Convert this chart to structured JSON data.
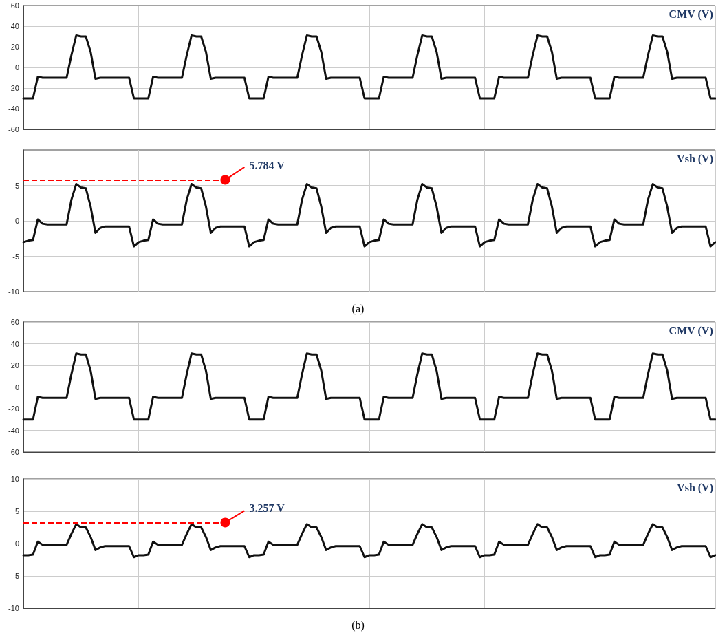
{
  "chart_data": [
    {
      "type": "line",
      "ylabel": "CMV (V)",
      "ylim": [
        -60,
        60
      ],
      "yticks": [
        -60,
        -40,
        -20,
        0,
        20,
        40,
        60
      ],
      "grid": true,
      "tick_labels": "y",
      "categories": [
        null,
        null,
        null,
        null,
        null,
        null,
        null,
        null,
        null,
        null,
        null,
        null,
        null,
        null,
        null,
        null,
        null,
        null,
        null,
        null,
        null,
        null,
        null,
        null,
        null,
        null,
        null,
        null,
        null,
        null,
        null,
        null,
        null,
        null,
        null,
        null,
        null,
        null,
        null,
        null,
        null,
        null,
        null,
        null,
        null,
        null,
        null,
        null,
        null,
        null,
        null,
        null,
        null,
        null,
        null,
        null,
        null,
        null,
        null,
        null,
        null,
        null,
        null,
        null,
        null,
        null,
        null,
        null,
        null,
        null,
        null,
        null,
        null,
        null,
        null,
        null,
        null,
        null,
        null,
        null,
        null,
        null,
        null,
        null,
        null,
        null,
        null,
        null,
        null,
        null,
        null,
        null,
        null,
        null,
        null,
        null,
        null,
        null,
        null,
        null,
        null,
        null,
        null,
        null,
        null,
        null,
        null,
        null,
        null,
        null,
        null,
        null,
        null,
        null,
        null,
        null,
        null,
        null,
        null,
        null,
        null,
        null,
        null,
        null,
        null,
        null,
        null,
        null,
        null,
        null,
        null,
        null,
        null,
        null,
        null,
        null,
        null,
        null,
        null,
        null,
        null,
        null,
        null,
        null,
        null
      ],
      "series": [
        {
          "color": "#111111",
          "values": [
            -30,
            -30,
            -30,
            -9,
            -10,
            -10,
            -10,
            -10,
            -10,
            -10,
            12,
            31,
            30,
            30,
            15,
            -11,
            -10,
            -10,
            -10,
            -10,
            -10,
            -10,
            -10,
            -30,
            -30,
            -30,
            -30,
            -9,
            -10,
            -10,
            -10,
            -10,
            -10,
            -10,
            12,
            31,
            30,
            30,
            15,
            -11,
            -10,
            -10,
            -10,
            -10,
            -10,
            -10,
            -10,
            -30,
            -30,
            -30,
            -30,
            -9,
            -10,
            -10,
            -10,
            -10,
            -10,
            -10,
            12,
            31,
            30,
            30,
            15,
            -11,
            -10,
            -10,
            -10,
            -10,
            -10,
            -10,
            -10,
            -30,
            -30,
            -30,
            -30,
            -9,
            -10,
            -10,
            -10,
            -10,
            -10,
            -10,
            12,
            31,
            30,
            30,
            15,
            -11,
            -10,
            -10,
            -10,
            -10,
            -10,
            -10,
            -10,
            -30,
            -30,
            -30,
            -30,
            -9,
            -10,
            -10,
            -10,
            -10,
            -10,
            -10,
            12,
            31,
            30,
            30,
            15,
            -11,
            -10,
            -10,
            -10,
            -10,
            -10,
            -10,
            -10,
            -30,
            -30,
            -30,
            -30,
            -9,
            -10,
            -10,
            -10,
            -10,
            -10,
            -10,
            12,
            31,
            30,
            30,
            15,
            -11,
            -10,
            -10,
            -10,
            -10,
            -10,
            -10,
            -10,
            -30,
            -30
          ]
        }
      ]
    },
    {
      "type": "line",
      "ylabel": "Vsh (V)",
      "ylim": [
        -10,
        10
      ],
      "yticks": [
        -10,
        -5,
        0,
        5
      ],
      "grid": true,
      "tick_labels": "y",
      "annotations": [
        "(a)"
      ],
      "ref_lines": [
        {
          "axis": "y",
          "value": 5.784,
          "label": "5.784 V",
          "color": "#ff0000",
          "line_style": "dashed"
        }
      ],
      "categories": [
        null,
        null,
        null,
        null,
        null,
        null,
        null,
        null,
        null,
        null,
        null,
        null,
        null,
        null,
        null,
        null,
        null,
        null,
        null,
        null,
        null,
        null,
        null,
        null,
        null,
        null,
        null,
        null,
        null,
        null,
        null,
        null,
        null,
        null,
        null,
        null,
        null,
        null,
        null,
        null,
        null,
        null,
        null,
        null,
        null,
        null,
        null,
        null,
        null,
        null,
        null,
        null,
        null,
        null,
        null,
        null,
        null,
        null,
        null,
        null,
        null,
        null,
        null,
        null,
        null,
        null,
        null,
        null,
        null,
        null,
        null,
        null,
        null,
        null,
        null,
        null,
        null,
        null,
        null,
        null,
        null,
        null,
        null,
        null,
        null,
        null,
        null,
        null,
        null,
        null,
        null,
        null,
        null,
        null,
        null,
        null,
        null,
        null,
        null,
        null,
        null,
        null,
        null,
        null,
        null,
        null,
        null,
        null,
        null,
        null,
        null,
        null,
        null,
        null,
        null,
        null,
        null,
        null,
        null,
        null,
        null,
        null,
        null,
        null,
        null,
        null,
        null,
        null,
        null,
        null,
        null,
        null,
        null,
        null,
        null,
        null,
        null,
        null,
        null,
        null,
        null,
        null,
        null,
        null,
        null
      ],
      "series": [
        {
          "color": "#111111",
          "values": [
            -3,
            -2.8,
            -2.7,
            0.2,
            -0.4,
            -0.5,
            -0.5,
            -0.5,
            -0.5,
            -0.5,
            3,
            5.2,
            4.7,
            4.6,
            2,
            -1.7,
            -1,
            -0.8,
            -0.8,
            -0.8,
            -0.8,
            -0.8,
            -0.8,
            -3.6,
            -3,
            -2.8,
            -2.7,
            0.2,
            -0.4,
            -0.5,
            -0.5,
            -0.5,
            -0.5,
            -0.5,
            3,
            5.2,
            4.7,
            4.6,
            2,
            -1.7,
            -1,
            -0.8,
            -0.8,
            -0.8,
            -0.8,
            -0.8,
            -0.8,
            -3.6,
            -3,
            -2.8,
            -2.7,
            0.2,
            -0.4,
            -0.5,
            -0.5,
            -0.5,
            -0.5,
            -0.5,
            3,
            5.2,
            4.7,
            4.6,
            2,
            -1.7,
            -1,
            -0.8,
            -0.8,
            -0.8,
            -0.8,
            -0.8,
            -0.8,
            -3.6,
            -3,
            -2.8,
            -2.7,
            0.2,
            -0.4,
            -0.5,
            -0.5,
            -0.5,
            -0.5,
            -0.5,
            3,
            5.2,
            4.7,
            4.6,
            2,
            -1.7,
            -1,
            -0.8,
            -0.8,
            -0.8,
            -0.8,
            -0.8,
            -0.8,
            -3.6,
            -3,
            -2.8,
            -2.7,
            0.2,
            -0.4,
            -0.5,
            -0.5,
            -0.5,
            -0.5,
            -0.5,
            3,
            5.2,
            4.7,
            4.6,
            2,
            -1.7,
            -1,
            -0.8,
            -0.8,
            -0.8,
            -0.8,
            -0.8,
            -0.8,
            -3.6,
            -3,
            -2.8,
            -2.7,
            0.2,
            -0.4,
            -0.5,
            -0.5,
            -0.5,
            -0.5,
            -0.5,
            3,
            5.2,
            4.7,
            4.6,
            2,
            -1.7,
            -1,
            -0.8,
            -0.8,
            -0.8,
            -0.8,
            -0.8,
            -0.8,
            -3.6,
            -3
          ]
        }
      ]
    },
    {
      "type": "line",
      "ylabel": "CMV (V)",
      "ylim": [
        -60,
        60
      ],
      "yticks": [
        -60,
        -40,
        -20,
        0,
        20,
        40,
        60
      ],
      "grid": true,
      "tick_labels": "y",
      "categories": [
        null,
        null,
        null,
        null,
        null,
        null,
        null,
        null,
        null,
        null,
        null,
        null,
        null,
        null,
        null,
        null,
        null,
        null,
        null,
        null,
        null,
        null,
        null,
        null,
        null,
        null,
        null,
        null,
        null,
        null,
        null,
        null,
        null,
        null,
        null,
        null,
        null,
        null,
        null,
        null,
        null,
        null,
        null,
        null,
        null,
        null,
        null,
        null,
        null,
        null,
        null,
        null,
        null,
        null,
        null,
        null,
        null,
        null,
        null,
        null,
        null,
        null,
        null,
        null,
        null,
        null,
        null,
        null,
        null,
        null,
        null,
        null,
        null,
        null,
        null,
        null,
        null,
        null,
        null,
        null,
        null,
        null,
        null,
        null,
        null,
        null,
        null,
        null,
        null,
        null,
        null,
        null,
        null,
        null,
        null,
        null,
        null,
        null,
        null,
        null,
        null,
        null,
        null,
        null,
        null,
        null,
        null,
        null,
        null,
        null,
        null,
        null,
        null,
        null,
        null,
        null,
        null,
        null,
        null,
        null,
        null,
        null,
        null,
        null,
        null,
        null,
        null,
        null,
        null,
        null,
        null,
        null,
        null,
        null,
        null,
        null,
        null,
        null,
        null,
        null,
        null,
        null,
        null,
        null,
        null
      ],
      "series": [
        {
          "color": "#111111",
          "values": [
            -30,
            -30,
            -30,
            -9,
            -10,
            -10,
            -10,
            -10,
            -10,
            -10,
            12,
            31,
            30,
            30,
            15,
            -11,
            -10,
            -10,
            -10,
            -10,
            -10,
            -10,
            -10,
            -30,
            -30,
            -30,
            -30,
            -9,
            -10,
            -10,
            -10,
            -10,
            -10,
            -10,
            12,
            31,
            30,
            30,
            15,
            -11,
            -10,
            -10,
            -10,
            -10,
            -10,
            -10,
            -10,
            -30,
            -30,
            -30,
            -30,
            -9,
            -10,
            -10,
            -10,
            -10,
            -10,
            -10,
            12,
            31,
            30,
            30,
            15,
            -11,
            -10,
            -10,
            -10,
            -10,
            -10,
            -10,
            -10,
            -30,
            -30,
            -30,
            -30,
            -9,
            -10,
            -10,
            -10,
            -10,
            -10,
            -10,
            12,
            31,
            30,
            30,
            15,
            -11,
            -10,
            -10,
            -10,
            -10,
            -10,
            -10,
            -10,
            -30,
            -30,
            -30,
            -30,
            -9,
            -10,
            -10,
            -10,
            -10,
            -10,
            -10,
            12,
            31,
            30,
            30,
            15,
            -11,
            -10,
            -10,
            -10,
            -10,
            -10,
            -10,
            -10,
            -30,
            -30,
            -30,
            -30,
            -9,
            -10,
            -10,
            -10,
            -10,
            -10,
            -10,
            12,
            31,
            30,
            30,
            15,
            -11,
            -10,
            -10,
            -10,
            -10,
            -10,
            -10,
            -10,
            -30,
            -30
          ]
        }
      ]
    },
    {
      "type": "line",
      "ylabel": "Vsh (V)",
      "ylim": [
        -10,
        10
      ],
      "yticks": [
        -10,
        -5,
        0,
        5,
        10
      ],
      "grid": true,
      "tick_labels": "y",
      "annotations": [
        "(b)"
      ],
      "ref_lines": [
        {
          "axis": "y",
          "value": 3.257,
          "label": "3.257 V",
          "color": "#ff0000",
          "line_style": "dashed"
        }
      ],
      "categories": [
        null,
        null,
        null,
        null,
        null,
        null,
        null,
        null,
        null,
        null,
        null,
        null,
        null,
        null,
        null,
        null,
        null,
        null,
        null,
        null,
        null,
        null,
        null,
        null,
        null,
        null,
        null,
        null,
        null,
        null,
        null,
        null,
        null,
        null,
        null,
        null,
        null,
        null,
        null,
        null,
        null,
        null,
        null,
        null,
        null,
        null,
        null,
        null,
        null,
        null,
        null,
        null,
        null,
        null,
        null,
        null,
        null,
        null,
        null,
        null,
        null,
        null,
        null,
        null,
        null,
        null,
        null,
        null,
        null,
        null,
        null,
        null,
        null,
        null,
        null,
        null,
        null,
        null,
        null,
        null,
        null,
        null,
        null,
        null,
        null,
        null,
        null,
        null,
        null,
        null,
        null,
        null,
        null,
        null,
        null,
        null,
        null,
        null,
        null,
        null,
        null,
        null,
        null,
        null,
        null,
        null,
        null,
        null,
        null,
        null,
        null,
        null,
        null,
        null,
        null,
        null,
        null,
        null,
        null,
        null,
        null,
        null,
        null,
        null,
        null,
        null,
        null,
        null,
        null,
        null,
        null,
        null,
        null,
        null,
        null,
        null,
        null,
        null,
        null,
        null,
        null,
        null,
        null,
        null,
        null
      ],
      "series": [
        {
          "color": "#111111",
          "values": [
            -1.8,
            -1.8,
            -1.7,
            0.3,
            -0.2,
            -0.2,
            -0.2,
            -0.2,
            -0.2,
            -0.2,
            1.5,
            3,
            2.5,
            2.5,
            1,
            -1,
            -0.6,
            -0.4,
            -0.4,
            -0.4,
            -0.4,
            -0.4,
            -0.4,
            -2.1,
            -1.8,
            -1.8,
            -1.7,
            0.3,
            -0.2,
            -0.2,
            -0.2,
            -0.2,
            -0.2,
            -0.2,
            1.5,
            3,
            2.5,
            2.5,
            1,
            -1,
            -0.6,
            -0.4,
            -0.4,
            -0.4,
            -0.4,
            -0.4,
            -0.4,
            -2.1,
            -1.8,
            -1.8,
            -1.7,
            0.3,
            -0.2,
            -0.2,
            -0.2,
            -0.2,
            -0.2,
            -0.2,
            1.5,
            3,
            2.5,
            2.5,
            1,
            -1,
            -0.6,
            -0.4,
            -0.4,
            -0.4,
            -0.4,
            -0.4,
            -0.4,
            -2.1,
            -1.8,
            -1.8,
            -1.7,
            0.3,
            -0.2,
            -0.2,
            -0.2,
            -0.2,
            -0.2,
            -0.2,
            1.5,
            3,
            2.5,
            2.5,
            1,
            -1,
            -0.6,
            -0.4,
            -0.4,
            -0.4,
            -0.4,
            -0.4,
            -0.4,
            -2.1,
            -1.8,
            -1.8,
            -1.7,
            0.3,
            -0.2,
            -0.2,
            -0.2,
            -0.2,
            -0.2,
            -0.2,
            1.5,
            3,
            2.5,
            2.5,
            1,
            -1,
            -0.6,
            -0.4,
            -0.4,
            -0.4,
            -0.4,
            -0.4,
            -0.4,
            -2.1,
            -1.8,
            -1.8,
            -1.7,
            0.3,
            -0.2,
            -0.2,
            -0.2,
            -0.2,
            -0.2,
            -0.2,
            1.5,
            3,
            2.5,
            2.5,
            1,
            -1,
            -0.6,
            -0.4,
            -0.4,
            -0.4,
            -0.4,
            -0.4,
            -0.4,
            -2.1,
            -1.8
          ]
        }
      ]
    }
  ]
}
